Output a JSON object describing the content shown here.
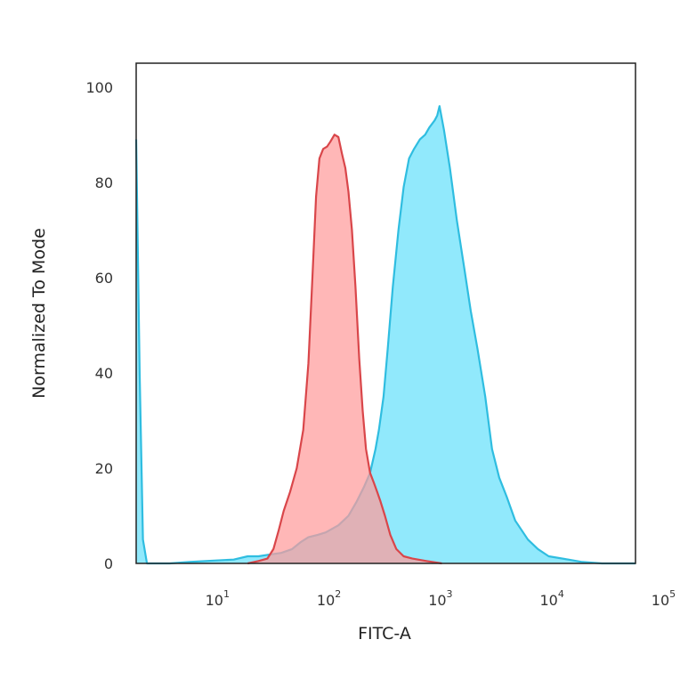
{
  "chart_data": {
    "type": "area",
    "title": "",
    "xlabel": "FITC-A",
    "ylabel": "Normalized To Mode",
    "x_scale": "log",
    "xlim": [
      2,
      60000
    ],
    "ylim": [
      0,
      105
    ],
    "x_ticks": [
      {
        "value": 10,
        "base": "10",
        "exp": "1"
      },
      {
        "value": 100,
        "base": "10",
        "exp": "2"
      },
      {
        "value": 1000,
        "base": "10",
        "exp": "3"
      },
      {
        "value": 10000,
        "base": "10",
        "exp": "4"
      },
      {
        "value": 100000,
        "base": "10",
        "exp": "5"
      }
    ],
    "y_ticks": [
      0,
      20,
      40,
      60,
      80,
      100
    ],
    "grid": false,
    "legend": "none",
    "series": [
      {
        "color_fill": "#ff9b9b",
        "color_line": "#d9464a",
        "points": [
          [
            20,
            0
          ],
          [
            25,
            0.5
          ],
          [
            30,
            1
          ],
          [
            34,
            3
          ],
          [
            38,
            7
          ],
          [
            42,
            11
          ],
          [
            48,
            15
          ],
          [
            55,
            20
          ],
          [
            63,
            28
          ],
          [
            70,
            42
          ],
          [
            76,
            60
          ],
          [
            82,
            77
          ],
          [
            88,
            85
          ],
          [
            95,
            87
          ],
          [
            103,
            87.5
          ],
          [
            110,
            88.5
          ],
          [
            120,
            90
          ],
          [
            130,
            89.5
          ],
          [
            140,
            86
          ],
          [
            150,
            83
          ],
          [
            160,
            78
          ],
          [
            172,
            70
          ],
          [
            185,
            58
          ],
          [
            200,
            43
          ],
          [
            215,
            32
          ],
          [
            230,
            24
          ],
          [
            250,
            19
          ],
          [
            270,
            17
          ],
          [
            290,
            15
          ],
          [
            310,
            13
          ],
          [
            340,
            10
          ],
          [
            380,
            6
          ],
          [
            430,
            3
          ],
          [
            500,
            1.5
          ],
          [
            600,
            1
          ],
          [
            800,
            0.5
          ],
          [
            1100,
            0
          ]
        ]
      },
      {
        "color_fill": "#7ee5fb",
        "color_line": "#2fbde0",
        "points": [
          [
            2.0,
            89
          ],
          [
            2.15,
            40
          ],
          [
            2.3,
            5
          ],
          [
            2.5,
            0
          ],
          [
            4,
            0
          ],
          [
            6,
            0.3
          ],
          [
            10,
            0.6
          ],
          [
            15,
            0.8
          ],
          [
            20,
            1.5
          ],
          [
            25,
            1.5
          ],
          [
            30,
            1.8
          ],
          [
            40,
            2.2
          ],
          [
            50,
            3
          ],
          [
            60,
            4.5
          ],
          [
            70,
            5.5
          ],
          [
            85,
            6
          ],
          [
            100,
            6.5
          ],
          [
            130,
            8
          ],
          [
            160,
            10
          ],
          [
            190,
            13
          ],
          [
            220,
            16
          ],
          [
            250,
            19
          ],
          [
            280,
            24
          ],
          [
            300,
            28
          ],
          [
            330,
            35
          ],
          [
            360,
            45
          ],
          [
            400,
            58
          ],
          [
            450,
            70
          ],
          [
            500,
            79
          ],
          [
            560,
            85
          ],
          [
            620,
            87
          ],
          [
            700,
            89
          ],
          [
            780,
            90
          ],
          [
            850,
            91.5
          ],
          [
            950,
            93
          ],
          [
            1000,
            94
          ],
          [
            1050,
            96
          ],
          [
            1150,
            91
          ],
          [
            1300,
            83
          ],
          [
            1500,
            72
          ],
          [
            1750,
            62
          ],
          [
            2000,
            53
          ],
          [
            2300,
            45
          ],
          [
            2700,
            35
          ],
          [
            3100,
            24
          ],
          [
            3600,
            18
          ],
          [
            4200,
            14
          ],
          [
            5000,
            9
          ],
          [
            6500,
            5
          ],
          [
            8000,
            3
          ],
          [
            10000,
            1.5
          ],
          [
            15000,
            0.8
          ],
          [
            20000,
            0.3
          ],
          [
            30000,
            0
          ],
          [
            60000,
            0
          ]
        ]
      }
    ]
  }
}
